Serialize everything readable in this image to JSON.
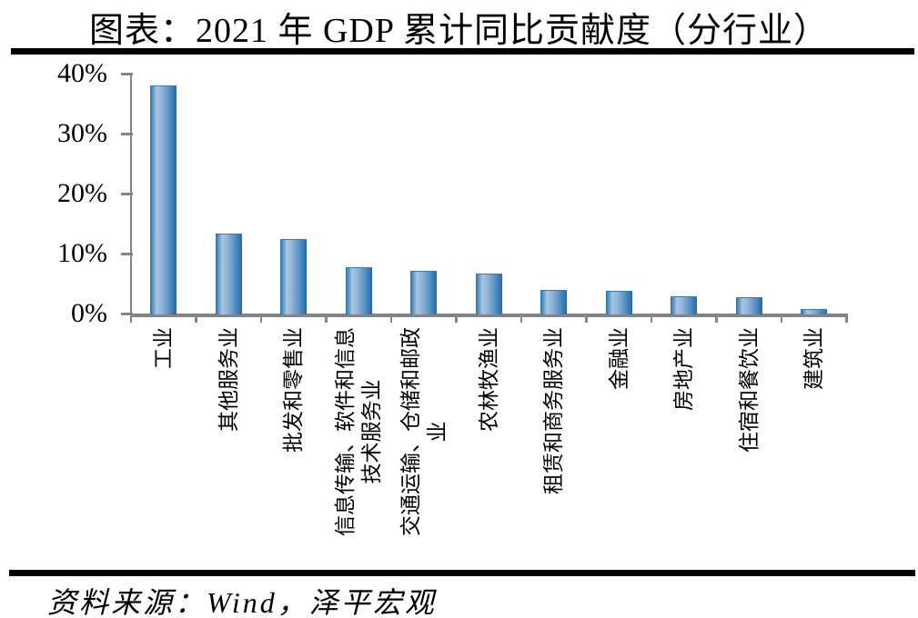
{
  "header": {
    "title": "图表：2021 年 GDP 累计同比贡献度（分行业）"
  },
  "footer": {
    "source_note": "资料来源：Wind，泽平宏观"
  },
  "colors": {
    "axis_gray": "#848484",
    "rule_black": "#000000",
    "text_black": "#000000",
    "bar_gradient_colors": [
      "#2173b4",
      "#a6c6e0",
      "#8fb3d4",
      "#5c94c6",
      "#1d6bb0"
    ],
    "bar_gradient_stops": [
      0,
      25,
      45,
      70,
      100
    ]
  },
  "chart_data": {
    "type": "bar",
    "title": "图表：2021 年 GDP 累计同比贡献度（分行业）",
    "categories": [
      "工业",
      "其他服务业",
      "批发和零售业",
      "信息传输、软件和信息\n技术服务业",
      "交通运输、仓储和邮政\n业",
      "农林牧渔业",
      "租赁和商务服务业",
      "金融业",
      "房地产业",
      "住宿和餐饮业",
      "建筑业"
    ],
    "values": [
      38.0,
      13.3,
      12.4,
      7.7,
      7.1,
      6.7,
      4.0,
      3.8,
      2.9,
      2.8,
      0.8
    ],
    "value_unit": "%",
    "xlabel": "",
    "ylabel": "",
    "ylim": [
      0,
      40
    ],
    "yticks": [
      40,
      30,
      20,
      10,
      0
    ],
    "ytick_suffix": "%",
    "grid": false,
    "legend": false,
    "bar_orientation": "vertical",
    "x_axis_label_rotation": -90
  }
}
